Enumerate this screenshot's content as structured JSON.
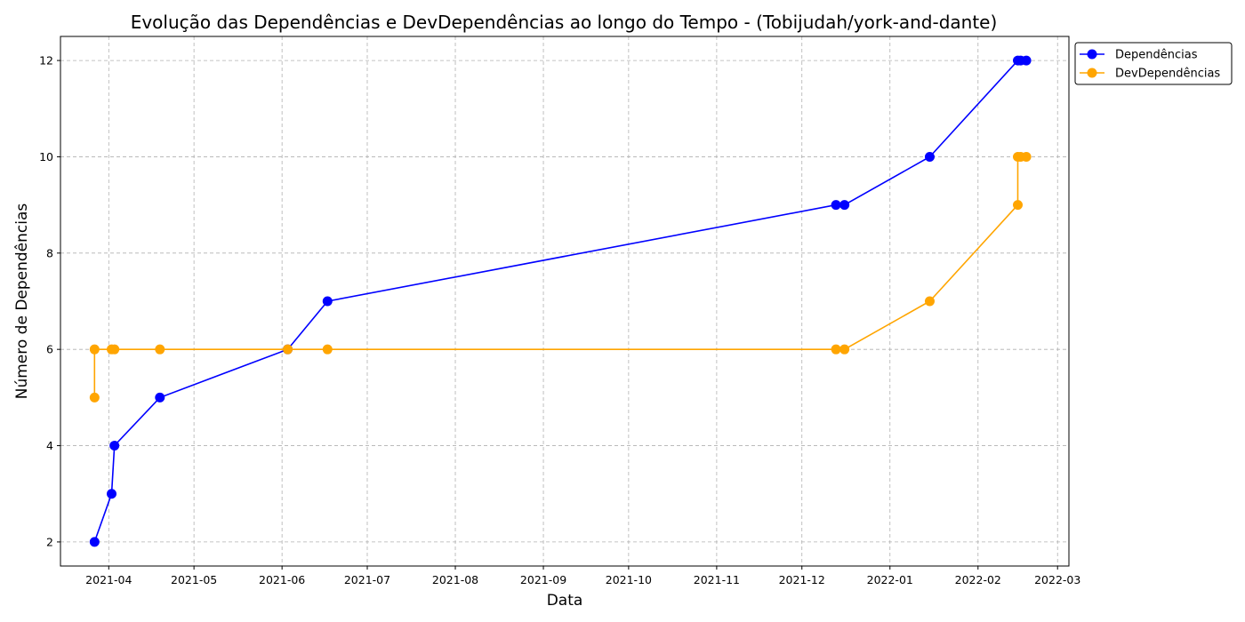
{
  "chart_data": {
    "type": "line",
    "title": "Evolução das Dependências e DevDependências ao longo do Tempo - (Tobijudah/york-and-dante)",
    "xlabel": "Data",
    "ylabel": "Número de Dependências",
    "x_ticks": [
      "2021-04",
      "2021-05",
      "2021-06",
      "2021-07",
      "2021-08",
      "2021-09",
      "2021-10",
      "2021-11",
      "2021-12",
      "2022-01",
      "2022-02",
      "2022-03"
    ],
    "y_ticks": [
      2,
      4,
      6,
      8,
      10,
      12
    ],
    "xlim": [
      "2021-03-15",
      "2022-03-05"
    ],
    "ylim": [
      1.5,
      12.5
    ],
    "grid": true,
    "legend_position": "outside-top-right",
    "series": [
      {
        "name": "Dependências",
        "color": "#0000ff",
        "x": [
          "2021-03-27",
          "2021-04-02",
          "2021-04-03",
          "2021-04-19",
          "2021-06-03",
          "2021-06-17",
          "2021-12-13",
          "2021-12-16",
          "2022-01-15",
          "2022-02-15",
          "2022-02-16",
          "2022-02-18"
        ],
        "values": [
          2,
          3,
          4,
          5,
          6,
          7,
          9,
          9,
          10,
          12,
          12,
          12
        ]
      },
      {
        "name": "DevDependências",
        "color": "#ffa500",
        "x": [
          "2021-03-27",
          "2021-03-27",
          "2021-04-02",
          "2021-04-03",
          "2021-04-19",
          "2021-06-03",
          "2021-06-17",
          "2021-12-13",
          "2021-12-16",
          "2022-01-15",
          "2022-02-15",
          "2022-02-15",
          "2022-02-16",
          "2022-02-18"
        ],
        "values": [
          5,
          6,
          6,
          6,
          6,
          6,
          6,
          6,
          6,
          7,
          9,
          10,
          10,
          10
        ]
      }
    ]
  }
}
